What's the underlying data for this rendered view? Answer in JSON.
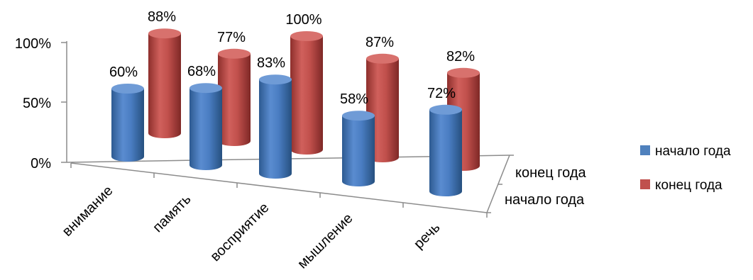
{
  "chart_data": {
    "type": "bar",
    "title": "",
    "categories": [
      "внимание",
      "память",
      "восприятие",
      "мышление",
      "речь"
    ],
    "series": [
      {
        "name": "начало года",
        "values": [
          60,
          68,
          83,
          58,
          72
        ],
        "color": "#4f81bd"
      },
      {
        "name": "конец года",
        "values": [
          88,
          77,
          100,
          87,
          82
        ],
        "color": "#c0504d"
      }
    ],
    "data_labels": {
      "начало года": [
        "60%",
        "68%",
        "83%",
        "58%",
        "72%"
      ],
      "конец года": [
        "88%",
        "77%",
        "100%",
        "87%",
        "82%"
      ]
    },
    "y_ticks": [
      "0%",
      "50%",
      "100%"
    ],
    "ylim": [
      0,
      100
    ],
    "depth_axis_labels": [
      "конец года",
      "начало года"
    ],
    "legend": {
      "position": "right",
      "items": [
        {
          "label": "начало года",
          "color": "#4f81bd"
        },
        {
          "label": "конец года",
          "color": "#c0504d"
        }
      ]
    },
    "style": "3d-cylinder"
  }
}
